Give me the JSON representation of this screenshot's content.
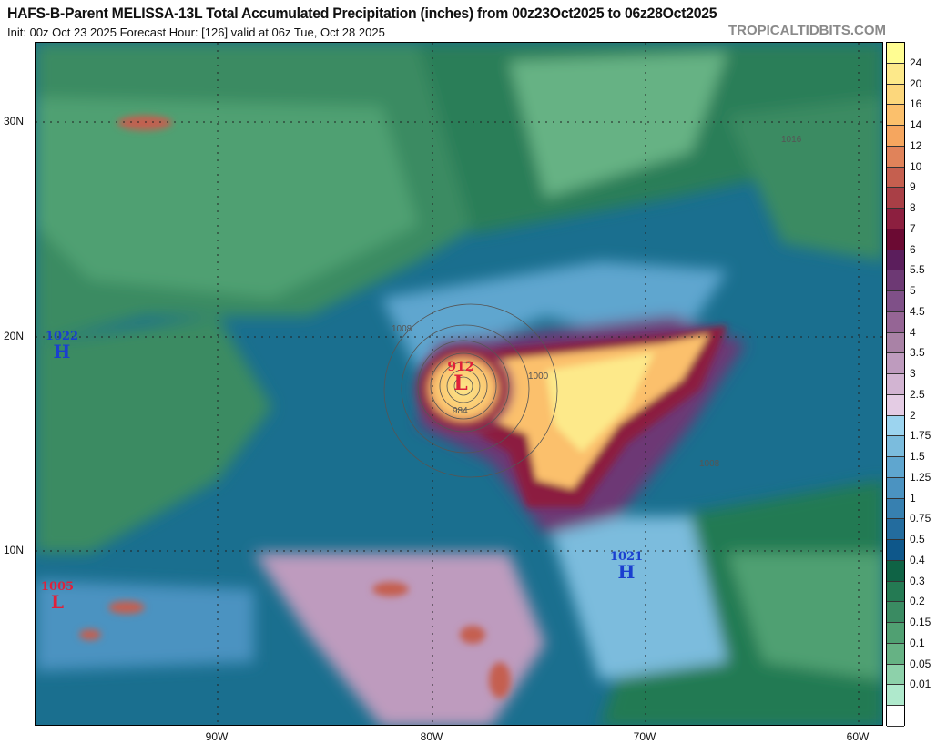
{
  "header": {
    "title": "HAFS-B-Parent MELISSA-13L Total Accumulated Precipitation (inches) from 00z23Oct2025 to 06z28Oct2025",
    "subtitle": "Init: 00z Oct 23 2025   Forecast Hour: [126]   valid at 06z Tue, Oct 28 2025",
    "watermark": "TROPICALTIDBITS.COM"
  },
  "axes": {
    "latitudes": [
      "30N",
      "20N",
      "10N"
    ],
    "longitudes": [
      "90W",
      "80W",
      "70W",
      "60W"
    ]
  },
  "pressure_centers": [
    {
      "type": "H",
      "value": "1022",
      "color": "#1a3fd0"
    },
    {
      "type": "L",
      "value": "1005",
      "color": "#e0203a"
    },
    {
      "type": "L",
      "value": "912",
      "color": "#e0203a"
    },
    {
      "type": "H",
      "value": "1021",
      "color": "#1a3fd0"
    }
  ],
  "isobar_labels": [
    "1016",
    "1008",
    "1000",
    "984",
    "1008"
  ],
  "colorbar": {
    "labels": [
      "24",
      "20",
      "16",
      "14",
      "12",
      "10",
      "9",
      "8",
      "7",
      "6",
      "5.5",
      "5",
      "4.5",
      "4",
      "3.5",
      "3",
      "2.5",
      "2",
      "1.75",
      "1.5",
      "1.25",
      "1",
      "0.75",
      "0.5",
      "0.4",
      "0.3",
      "0.2",
      "0.15",
      "0.1",
      "0.05",
      "0.01"
    ],
    "colors": [
      "#fffd92",
      "#fde98a",
      "#fcd77c",
      "#fbc06c",
      "#f5a65f",
      "#e0835a",
      "#c55f4f",
      "#a93f46",
      "#8c1f3f",
      "#6b0a33",
      "#5b1e5c",
      "#6d3974",
      "#7f5088",
      "#956595",
      "#a982a6",
      "#be9bbe",
      "#d2b4d2",
      "#e4cce4",
      "#9cd4ef",
      "#7bbcdd",
      "#5fa6cf",
      "#4b93c1",
      "#3780b0",
      "#236c9e",
      "#0e578a",
      "#0f6345",
      "#247a53",
      "#3a8b62",
      "#50a072",
      "#66b284",
      "#8dd1aa",
      "#afe9cc",
      "#ffffff"
    ]
  }
}
